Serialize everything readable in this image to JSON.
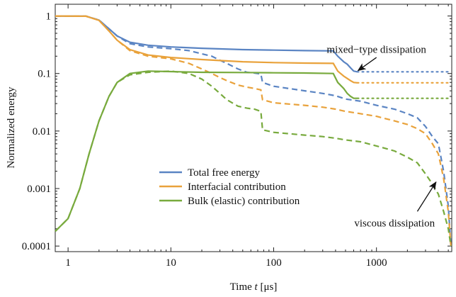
{
  "chart_data": {
    "type": "line",
    "title": "",
    "xlabel_prefix": "Time ",
    "xlabel_var": "t",
    "xlabel_unit": " [μs]",
    "ylabel": "Normalized energy",
    "xscale": "log",
    "yscale": "log",
    "xlim": [
      0.75,
      5400
    ],
    "ylim": [
      8e-05,
      1.6
    ],
    "xticks": [
      {
        "value": 1,
        "label": "1"
      },
      {
        "value": 10,
        "label": "10"
      },
      {
        "value": 100,
        "label": "100"
      },
      {
        "value": 1000,
        "label": "1000"
      }
    ],
    "yticks": [
      {
        "value": 1,
        "label": "1"
      },
      {
        "value": 0.1,
        "label": "0.1"
      },
      {
        "value": 0.01,
        "label": "0.01"
      },
      {
        "value": 0.001,
        "label": "0.001"
      },
      {
        "value": 0.0001,
        "label": "0.0001"
      }
    ],
    "legend_position": "lower-center",
    "grid": false,
    "series": [
      {
        "name": "Total free energy",
        "color": "#5a84c3",
        "mixed_type": [
          [
            0.75,
            1
          ],
          [
            1.5,
            0.99
          ],
          [
            2,
            0.85
          ],
          [
            2.5,
            0.6
          ],
          [
            3,
            0.45
          ],
          [
            4,
            0.35
          ],
          [
            6,
            0.31
          ],
          [
            10,
            0.29
          ],
          [
            20,
            0.275
          ],
          [
            50,
            0.26
          ],
          [
            100,
            0.255
          ],
          [
            200,
            0.25
          ],
          [
            380,
            0.247
          ],
          [
            420,
            0.2
          ],
          [
            480,
            0.16
          ],
          [
            520,
            0.145
          ],
          [
            560,
            0.125
          ],
          [
            600,
            0.11
          ],
          [
            650,
            0.107
          ]
        ],
        "mixed_type_extension": [
          [
            650,
            0.107
          ],
          [
            5300,
            0.107
          ]
        ],
        "viscous": [
          [
            0.75,
            1
          ],
          [
            1.5,
            0.99
          ],
          [
            2,
            0.85
          ],
          [
            2.5,
            0.6
          ],
          [
            3,
            0.45
          ],
          [
            4,
            0.33
          ],
          [
            6,
            0.29
          ],
          [
            10,
            0.27
          ],
          [
            15,
            0.25
          ],
          [
            20,
            0.22
          ],
          [
            25,
            0.2
          ],
          [
            30,
            0.17
          ],
          [
            35,
            0.15
          ],
          [
            45,
            0.12
          ],
          [
            55,
            0.105
          ],
          [
            65,
            0.102
          ],
          [
            75,
            0.098
          ],
          [
            78,
            0.07
          ],
          [
            100,
            0.06
          ],
          [
            200,
            0.05
          ],
          [
            300,
            0.045
          ],
          [
            400,
            0.041
          ],
          [
            500,
            0.036
          ],
          [
            700,
            0.033
          ],
          [
            1000,
            0.028
          ],
          [
            1500,
            0.024
          ],
          [
            2000,
            0.02
          ],
          [
            2500,
            0.017
          ],
          [
            3000,
            0.012
          ],
          [
            3500,
            0.008
          ],
          [
            4000,
            0.006
          ],
          [
            4500,
            0.002
          ],
          [
            5000,
            0.0005
          ],
          [
            5300,
            0.0001
          ]
        ]
      },
      {
        "name": "Interfacial contribution",
        "color": "#e9a23b",
        "mixed_type": [
          [
            0.75,
            1
          ],
          [
            1.5,
            0.99
          ],
          [
            2,
            0.84
          ],
          [
            2.5,
            0.55
          ],
          [
            3,
            0.38
          ],
          [
            4,
            0.26
          ],
          [
            6,
            0.21
          ],
          [
            10,
            0.19
          ],
          [
            20,
            0.175
          ],
          [
            50,
            0.16
          ],
          [
            100,
            0.155
          ],
          [
            200,
            0.152
          ],
          [
            380,
            0.15
          ],
          [
            420,
            0.11
          ],
          [
            480,
            0.09
          ],
          [
            520,
            0.082
          ],
          [
            560,
            0.075
          ],
          [
            600,
            0.07
          ],
          [
            650,
            0.069
          ]
        ],
        "mixed_type_extension": [
          [
            650,
            0.069
          ],
          [
            5300,
            0.069
          ]
        ],
        "viscous": [
          [
            0.75,
            1
          ],
          [
            1.5,
            0.99
          ],
          [
            2,
            0.84
          ],
          [
            2.5,
            0.55
          ],
          [
            3,
            0.38
          ],
          [
            4,
            0.25
          ],
          [
            6,
            0.2
          ],
          [
            10,
            0.18
          ],
          [
            15,
            0.15
          ],
          [
            20,
            0.12
          ],
          [
            25,
            0.1
          ],
          [
            30,
            0.085
          ],
          [
            35,
            0.075
          ],
          [
            45,
            0.063
          ],
          [
            55,
            0.058
          ],
          [
            65,
            0.055
          ],
          [
            75,
            0.052
          ],
          [
            78,
            0.035
          ],
          [
            100,
            0.031
          ],
          [
            200,
            0.028
          ],
          [
            300,
            0.026
          ],
          [
            400,
            0.024
          ],
          [
            500,
            0.022
          ],
          [
            700,
            0.02
          ],
          [
            1000,
            0.018
          ],
          [
            1500,
            0.015
          ],
          [
            2000,
            0.013
          ],
          [
            2500,
            0.011
          ],
          [
            3000,
            0.009
          ],
          [
            3500,
            0.006
          ],
          [
            4000,
            0.004
          ],
          [
            4500,
            0.0015
          ],
          [
            5000,
            0.0004
          ],
          [
            5300,
            0.0001
          ]
        ]
      },
      {
        "name": "Bulk (elastic) contribution",
        "color": "#78aa3d",
        "mixed_type": [
          [
            0.75,
            0.00018
          ],
          [
            1,
            0.0003
          ],
          [
            1.3,
            0.001
          ],
          [
            1.6,
            0.004
          ],
          [
            2,
            0.015
          ],
          [
            2.5,
            0.04
          ],
          [
            3,
            0.07
          ],
          [
            4,
            0.1
          ],
          [
            6,
            0.11
          ],
          [
            10,
            0.108
          ],
          [
            20,
            0.105
          ],
          [
            50,
            0.104
          ],
          [
            100,
            0.103
          ],
          [
            200,
            0.102
          ],
          [
            380,
            0.1
          ],
          [
            420,
            0.07
          ],
          [
            480,
            0.055
          ],
          [
            520,
            0.045
          ],
          [
            560,
            0.04
          ],
          [
            600,
            0.037
          ],
          [
            650,
            0.037
          ]
        ],
        "mixed_type_extension": [
          [
            650,
            0.037
          ],
          [
            5300,
            0.037
          ]
        ],
        "viscous": [
          [
            0.75,
            0.00018
          ],
          [
            1,
            0.0003
          ],
          [
            1.3,
            0.001
          ],
          [
            1.6,
            0.004
          ],
          [
            2,
            0.015
          ],
          [
            2.5,
            0.04
          ],
          [
            3,
            0.07
          ],
          [
            4,
            0.095
          ],
          [
            6,
            0.105
          ],
          [
            10,
            0.11
          ],
          [
            15,
            0.1
          ],
          [
            20,
            0.08
          ],
          [
            25,
            0.06
          ],
          [
            30,
            0.045
          ],
          [
            35,
            0.035
          ],
          [
            45,
            0.027
          ],
          [
            55,
            0.025
          ],
          [
            65,
            0.024
          ],
          [
            75,
            0.022
          ],
          [
            78,
            0.0105
          ],
          [
            100,
            0.0095
          ],
          [
            200,
            0.0085
          ],
          [
            300,
            0.008
          ],
          [
            400,
            0.0075
          ],
          [
            500,
            0.007
          ],
          [
            700,
            0.0065
          ],
          [
            1000,
            0.0055
          ],
          [
            1500,
            0.0045
          ],
          [
            2000,
            0.0035
          ],
          [
            2500,
            0.0028
          ],
          [
            3000,
            0.0018
          ],
          [
            3500,
            0.0012
          ],
          [
            4000,
            0.0008
          ],
          [
            4500,
            0.0004
          ],
          [
            5000,
            0.0002
          ],
          [
            5300,
            0.0001
          ]
        ]
      }
    ],
    "annotations": [
      {
        "name": "mixed-type-dissipation",
        "text": "mixed−type dissipation",
        "x": 1000,
        "y": 0.23,
        "arrow_from": [
          1000,
          0.19
        ],
        "arrow_to": [
          660,
          0.112
        ]
      },
      {
        "name": "viscous-dissipation",
        "text": "viscous dissipation",
        "x": 1500,
        "y": 0.00022,
        "arrow_from": [
          2500,
          0.0004
        ],
        "arrow_to": [
          3800,
          0.0013
        ]
      }
    ]
  }
}
